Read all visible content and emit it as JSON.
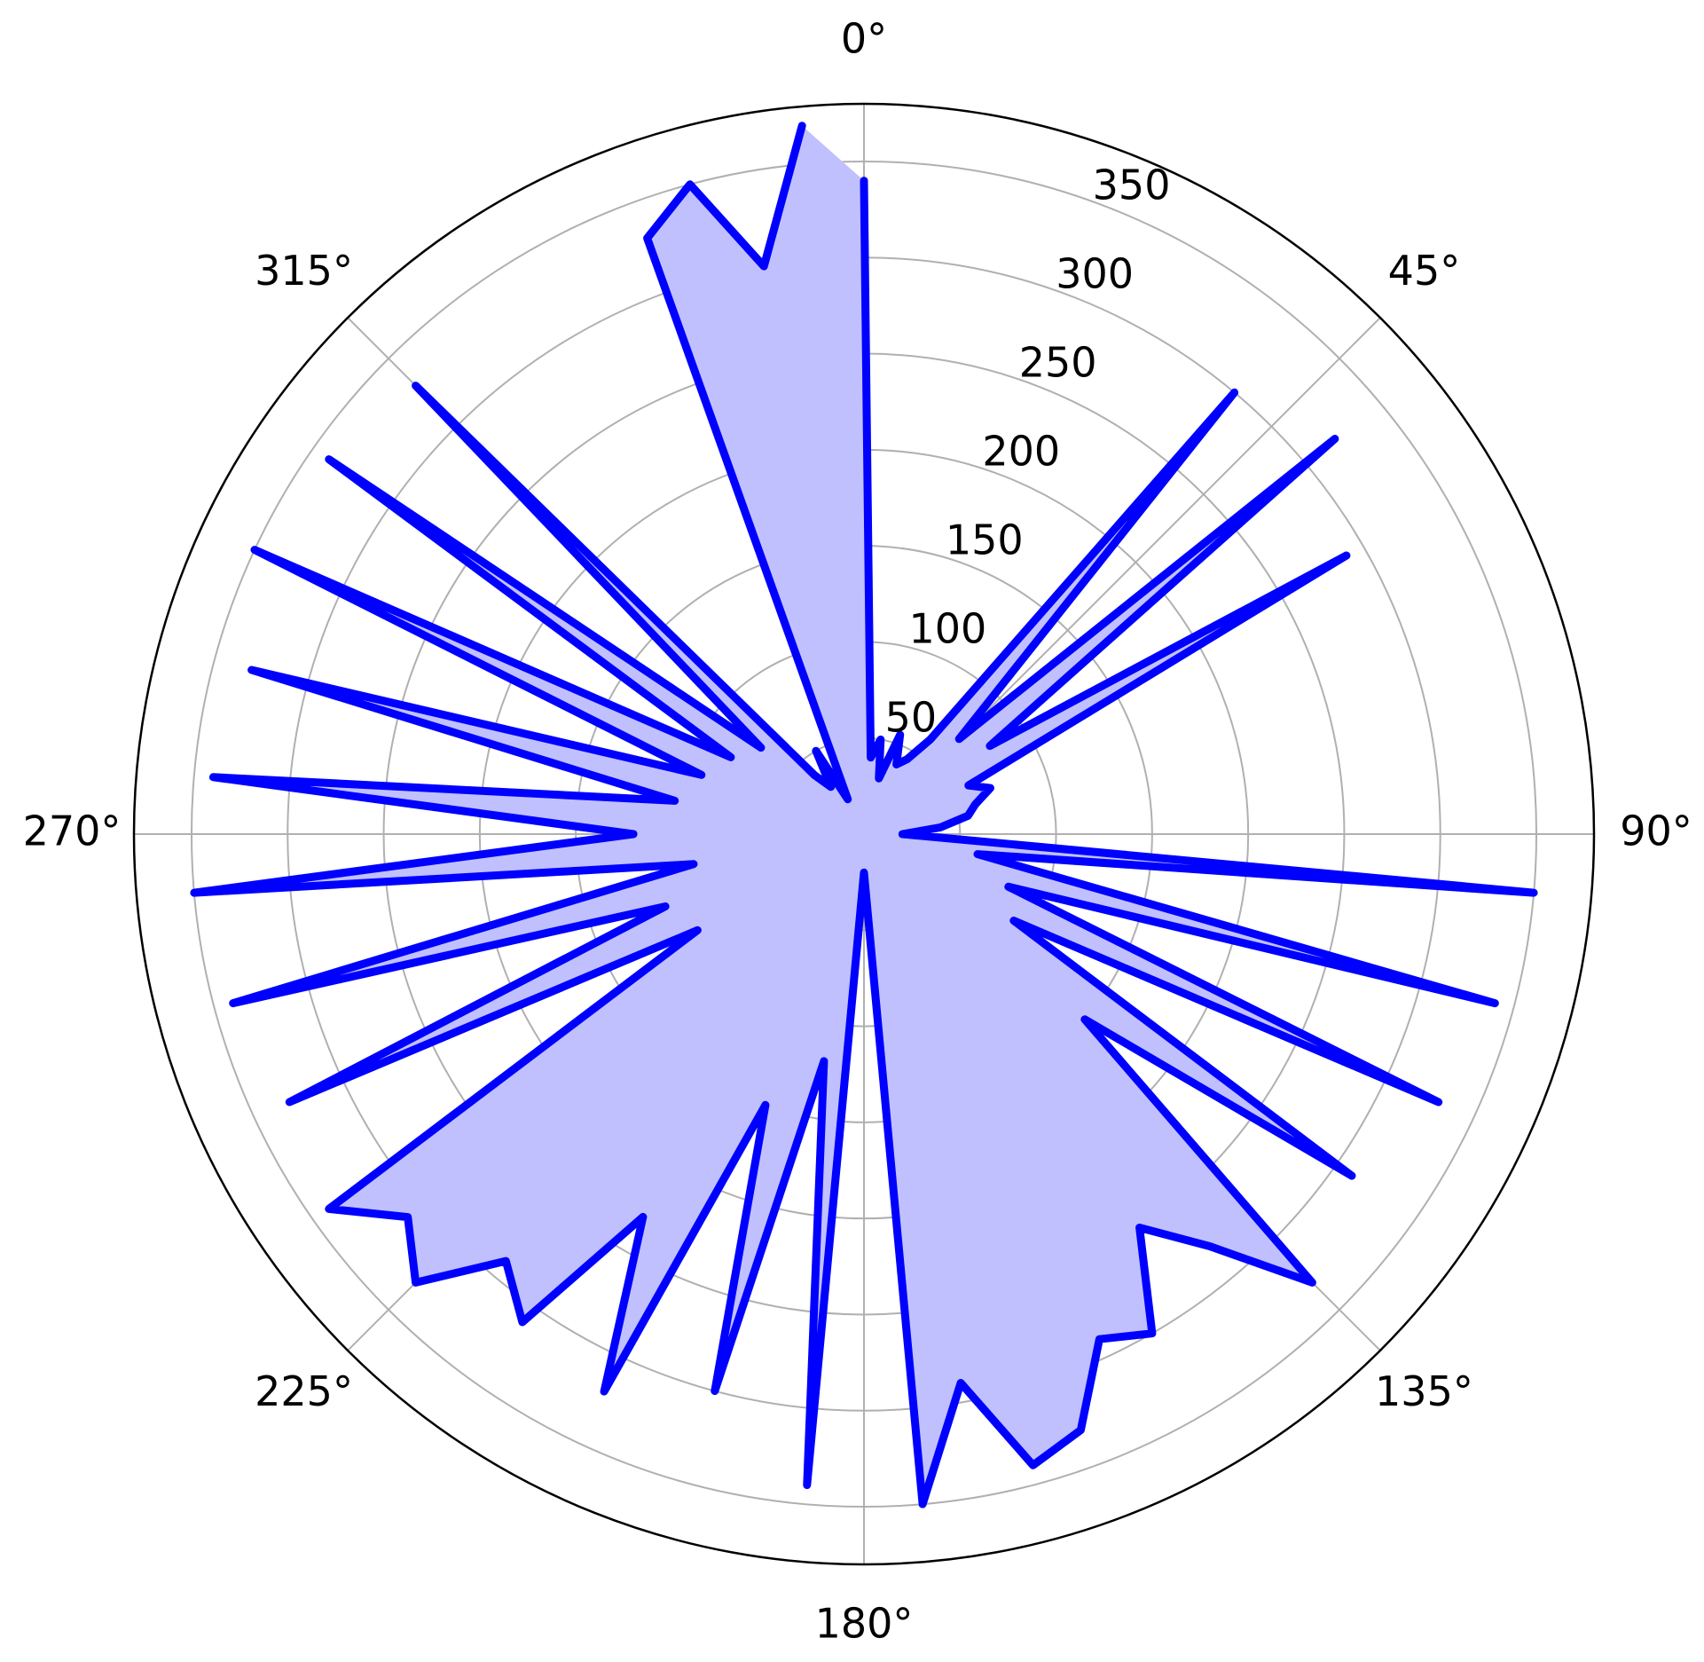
{
  "chart_data": {
    "type": "polar",
    "theta_zero": "N",
    "theta_direction": "clockwise",
    "grid": true,
    "x": [
      0,
      5,
      10,
      15,
      20,
      25,
      30,
      35,
      40,
      45,
      50,
      55,
      60,
      65,
      70,
      75,
      80,
      85,
      90,
      95,
      100,
      105,
      110,
      115,
      120,
      125,
      130,
      135,
      140,
      145,
      150,
      155,
      160,
      165,
      170,
      175,
      180,
      185,
      190,
      195,
      200,
      205,
      210,
      215,
      220,
      225,
      230,
      235,
      240,
      245,
      250,
      255,
      260,
      265,
      270,
      275,
      280,
      285,
      290,
      295,
      300,
      305,
      310,
      315,
      320,
      325,
      330,
      335,
      340,
      345,
      350,
      355
    ],
    "series": [
      {
        "color": "#0000ff",
        "fill": "#c0c0ff",
        "values": [
          340,
          40,
          50,
          30,
          55,
          40,
          45,
          60,
          300,
          70,
          320,
          80,
          290,
          60,
          70,
          60,
          55,
          40,
          20,
          350,
          60,
          340,
          80,
          330,
          90,
          310,
          150,
          330,
          280,
          250,
          300,
          290,
          330,
          340,
          290,
          350,
          20,
          340,
          120,
          300,
          150,
          320,
          230,
          310,
          290,
          330,
          310,
          340,
          100,
          330,
          110,
          340,
          90,
          350,
          120,
          340,
          100,
          330,
          90,
          350,
          80,
          340,
          70,
          330,
          40,
          30,
          50,
          20,
          330,
          350,
          300,
          370
        ]
      }
    ],
    "rlim": [
      0,
      380
    ],
    "rticks": [
      50,
      100,
      150,
      200,
      250,
      300,
      350
    ],
    "xticks": [
      {
        "value": 0,
        "label": "0°"
      },
      {
        "value": 45,
        "label": "45°"
      },
      {
        "value": 90,
        "label": "90°"
      },
      {
        "value": 135,
        "label": "135°"
      },
      {
        "value": 180,
        "label": "180°"
      },
      {
        "value": 225,
        "label": "225°"
      },
      {
        "value": 270,
        "label": "270°"
      },
      {
        "value": 315,
        "label": "315°"
      }
    ]
  }
}
